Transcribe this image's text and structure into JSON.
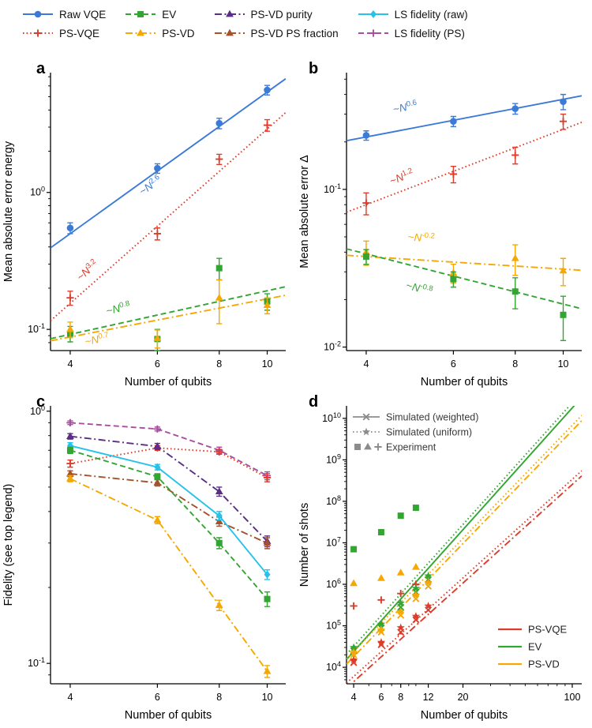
{
  "figure": {
    "legend_items": [
      {
        "label": "Raw VQE",
        "color": "#3b7ad7",
        "line": "solid",
        "marker": "circle"
      },
      {
        "label": "PS-VQE",
        "color": "#dd3c2a",
        "line": "dotted",
        "marker": "plus"
      },
      {
        "label": "EV",
        "color": "#33a532",
        "line": "dashed",
        "marker": "square"
      },
      {
        "label": "PS-VD",
        "color": "#f5a802",
        "line": "dashdot",
        "marker": "triangle"
      },
      {
        "label": "PS-VD purity",
        "color": "#5c2d87",
        "line": "dashdot",
        "marker": "triangle"
      },
      {
        "label": "PS-VD PS fraction",
        "color": "#a5522b",
        "line": "dashdot",
        "marker": "triangle"
      },
      {
        "label": "LS fidelity (raw)",
        "color": "#25c2ea",
        "line": "solid",
        "marker": "diamond"
      },
      {
        "label": "LS fidelity (PS)",
        "color": "#a84d9f",
        "line": "dashed",
        "marker": "plus"
      }
    ]
  },
  "chart_data": [
    {
      "id": "a",
      "panel_label": "a",
      "type": "line",
      "xlabel": "Number of qubits",
      "ylabel": "Mean absolute error energy",
      "xscale": "log",
      "yscale": "log",
      "xlim": [
        3.65,
        10.9
      ],
      "ylim": [
        0.07,
        7.5
      ],
      "xticks": [
        4,
        6,
        8,
        10
      ],
      "series": [
        {
          "name": "Raw VQE",
          "color": "#3b7ad7",
          "line": "solid",
          "marker": "circle",
          "x": [
            4,
            6,
            8,
            10
          ],
          "y": [
            0.55,
            1.5,
            3.2,
            5.6
          ],
          "yerr": [
            0.05,
            0.12,
            0.28,
            0.45
          ],
          "fit": {
            "exp": 2.6,
            "y_at_4": 0.5
          }
        },
        {
          "name": "PS-VQE",
          "color": "#dd3c2a",
          "line": "dotted",
          "marker": "plus",
          "x": [
            4,
            6,
            8,
            10
          ],
          "y": [
            0.17,
            0.5,
            1.75,
            3.1
          ],
          "yerr": [
            0.02,
            0.05,
            0.15,
            0.3
          ],
          "fit": {
            "exp": 3.2,
            "y_at_4": 0.155
          }
        },
        {
          "name": "EV",
          "color": "#33a532",
          "line": "dashed",
          "marker": "square",
          "x": [
            4,
            6,
            8,
            10
          ],
          "y": [
            0.093,
            0.085,
            0.28,
            0.16
          ],
          "yerr": [
            0.012,
            0.015,
            0.05,
            0.022
          ],
          "fit": {
            "exp": 0.8,
            "y_at_4": 0.092
          }
        },
        {
          "name": "PS-VD",
          "color": "#f5a802",
          "line": "dashdot",
          "marker": "triangle",
          "x": [
            4,
            6,
            8,
            10
          ],
          "y": [
            0.1,
            0.086,
            0.17,
            0.15
          ],
          "yerr": [
            0.013,
            0.013,
            0.06,
            0.02
          ],
          "fit": {
            "exp": 0.7,
            "y_at_4": 0.088
          }
        }
      ],
      "annotations": [
        {
          "text": "~N",
          "exp": "2.6",
          "color": "#3b7ad7",
          "x": 5.6,
          "y": 0.95,
          "rotate": -36
        },
        {
          "text": "~N",
          "exp": "3.2",
          "color": "#dd3c2a",
          "x": 4.2,
          "y": 0.225,
          "rotate": -42
        },
        {
          "text": "~N",
          "exp": "0.8",
          "color": "#33a532",
          "x": 4.75,
          "y": 0.128,
          "rotate": -13
        },
        {
          "text": "~N",
          "exp": "0.7",
          "color": "#f5a802",
          "x": 4.3,
          "y": 0.0765,
          "rotate": -11
        }
      ]
    },
    {
      "id": "b",
      "panel_label": "b",
      "type": "line",
      "xlabel": "Number of qubits",
      "ylabel": "Mean absolute error Δ",
      "xscale": "log",
      "yscale": "log",
      "xlim": [
        3.65,
        10.9
      ],
      "ylim": [
        0.0095,
        0.55
      ],
      "xticks": [
        4,
        6,
        8,
        10
      ],
      "series": [
        {
          "name": "Raw VQE",
          "color": "#3b7ad7",
          "line": "solid",
          "marker": "circle",
          "x": [
            4,
            6,
            8,
            10
          ],
          "y": [
            0.22,
            0.27,
            0.325,
            0.36
          ],
          "yerr": [
            0.015,
            0.02,
            0.025,
            0.04
          ],
          "fit": {
            "exp": 0.6,
            "y_at_4": 0.215
          }
        },
        {
          "name": "PS-VQE",
          "color": "#dd3c2a",
          "line": "dotted",
          "marker": "plus",
          "x": [
            4,
            6,
            8,
            10
          ],
          "y": [
            0.082,
            0.125,
            0.165,
            0.27
          ],
          "yerr": [
            0.013,
            0.015,
            0.02,
            0.03
          ],
          "fit": {
            "exp": 1.2,
            "y_at_4": 0.08
          }
        },
        {
          "name": "PS-VD",
          "color": "#f5a802",
          "line": "dashdot",
          "marker": "triangle",
          "x": [
            4,
            6,
            8,
            10
          ],
          "y": [
            0.04,
            0.0295,
            0.0365,
            0.0305
          ],
          "yerr": [
            0.007,
            0.004,
            0.008,
            0.006
          ],
          "fit": {
            "exp": -0.2,
            "y_at_4": 0.0375
          }
        },
        {
          "name": "EV",
          "color": "#33a532",
          "line": "dashed",
          "marker": "square",
          "x": [
            4,
            6,
            8,
            10
          ],
          "y": [
            0.0375,
            0.027,
            0.0225,
            0.016
          ],
          "yerr": [
            0.004,
            0.003,
            0.005,
            0.005
          ],
          "fit": {
            "exp": -0.8,
            "y_at_4": 0.039
          }
        }
      ],
      "annotations": [
        {
          "text": "~N",
          "exp": "0.6",
          "color": "#3b7ad7",
          "x": 4.55,
          "y": 0.305,
          "rotate": -11
        },
        {
          "text": "~N",
          "exp": "1.2",
          "color": "#dd3c2a",
          "x": 4.5,
          "y": 0.107,
          "rotate": -21
        },
        {
          "text": "~N",
          "exp": "-0.2",
          "color": "#f5a802",
          "x": 4.85,
          "y": 0.0475,
          "rotate": 4
        },
        {
          "text": "~N",
          "exp": "-0.8",
          "color": "#33a532",
          "x": 4.8,
          "y": 0.0235,
          "rotate": 14
        }
      ]
    },
    {
      "id": "c",
      "panel_label": "c",
      "type": "line",
      "xlabel": "Number of qubits",
      "ylabel": "Fidelity (see top legend)",
      "xscale": "log",
      "yscale": "log",
      "xlim": [
        3.65,
        10.9
      ],
      "ylim": [
        0.083,
        1.05
      ],
      "xticks": [
        4,
        6,
        8,
        10
      ],
      "series": [
        {
          "name": "LS fidelity (PS)",
          "color": "#a84d9f",
          "line": "dashed",
          "marker": "plus",
          "x": [
            4,
            6,
            8,
            10
          ],
          "y": [
            0.9,
            0.85,
            0.7,
            0.555
          ],
          "yerr": [
            0.015,
            0.015,
            0.02,
            0.02
          ]
        },
        {
          "name": "PS-VQE",
          "color": "#dd3c2a",
          "line": "dotted",
          "marker": "plus",
          "x": [
            4,
            6,
            8,
            10
          ],
          "y": [
            0.62,
            0.715,
            0.69,
            0.545
          ],
          "yerr": [
            0.02,
            0.015,
            0.015,
            0.02
          ]
        },
        {
          "name": "PS-VD purity",
          "color": "#5c2d87",
          "line": "dashdot",
          "marker": "triangle",
          "x": [
            4,
            6,
            8,
            10
          ],
          "y": [
            0.795,
            0.725,
            0.48,
            0.305
          ],
          "yerr": [
            0.02,
            0.02,
            0.02,
            0.015
          ]
        },
        {
          "name": "PS-VD PS fraction",
          "color": "#a5522b",
          "line": "dashdot",
          "marker": "triangle",
          "x": [
            4,
            6,
            8,
            10
          ],
          "y": [
            0.565,
            0.52,
            0.365,
            0.3
          ],
          "yerr": [
            0.015,
            0.015,
            0.015,
            0.015
          ]
        },
        {
          "name": "LS fidelity (raw)",
          "color": "#25c2ea",
          "line": "solid",
          "marker": "diamond",
          "x": [
            4,
            6,
            8,
            10
          ],
          "y": [
            0.73,
            0.6,
            0.385,
            0.225
          ],
          "yerr": [
            0.02,
            0.015,
            0.015,
            0.01
          ]
        },
        {
          "name": "EV",
          "color": "#33a532",
          "line": "dashed",
          "marker": "square",
          "x": [
            4,
            6,
            8,
            10
          ],
          "y": [
            0.7,
            0.55,
            0.3,
            0.18
          ],
          "yerr": [
            0.02,
            0.015,
            0.015,
            0.012
          ]
        },
        {
          "name": "PS-VD",
          "color": "#f5a802",
          "line": "dashdot",
          "marker": "triangle",
          "x": [
            4,
            6,
            8,
            10
          ],
          "y": [
            0.54,
            0.37,
            0.17,
            0.093
          ],
          "yerr": [
            0.015,
            0.012,
            0.008,
            0.005
          ]
        }
      ],
      "annotations": []
    },
    {
      "id": "d",
      "panel_label": "d",
      "type": "scatter",
      "xlabel": "Number of qubits",
      "ylabel": "Number of shots",
      "xscale": "log",
      "yscale": "log",
      "xlim": [
        3.6,
        115
      ],
      "ylim": [
        4000,
        20000000000.0
      ],
      "xticks": [
        4,
        6,
        8,
        12,
        20,
        100
      ],
      "xminor": true,
      "series": [
        {
          "name": "PS-VQE fit (weighted)",
          "color": "#dd3c2a",
          "line": "dashdot",
          "fit": {
            "exp": 3.4,
            "y_at_4": 4500
          }
        },
        {
          "name": "PS-VQE fit (uniform)",
          "color": "#dd3c2a",
          "line": "dotted",
          "fit": {
            "exp": 3.4,
            "y_at_4": 6000
          }
        },
        {
          "name": "EV fit (weighted)",
          "color": "#33a532",
          "line": "solid",
          "fit": {
            "exp": 4.2,
            "y_at_4": 24000
          }
        },
        {
          "name": "EV fit (uniform)",
          "color": "#33a532",
          "line": "dotted",
          "fit": {
            "exp": 4.2,
            "y_at_4": 32000
          }
        },
        {
          "name": "PS-VD fit (weighted)",
          "color": "#f5a802",
          "line": "dashdot",
          "fit": {
            "exp": 3.9,
            "y_at_4": 18000
          }
        },
        {
          "name": "PS-VD fit (uniform)",
          "color": "#f5a802",
          "line": "dotted",
          "fit": {
            "exp": 3.9,
            "y_at_4": 24000
          }
        },
        {
          "name": "Experiment EV",
          "color": "#33a532",
          "marker": "square",
          "x": [
            4,
            6,
            8,
            10
          ],
          "y": [
            7000000.0,
            18000000.0,
            45000000.0,
            70000000.0
          ]
        },
        {
          "name": "Experiment PS-VD",
          "color": "#f5a802",
          "marker": "triangle",
          "x": [
            4,
            6,
            8,
            10
          ],
          "y": [
            1050000.0,
            1400000.0,
            1900000.0,
            2600000.0
          ]
        },
        {
          "name": "Experiment PS-VQE",
          "color": "#dd3c2a",
          "marker": "plus",
          "x": [
            4,
            6,
            8,
            10
          ],
          "y": [
            300000.0,
            420000.0,
            600000.0,
            1000000.0
          ]
        },
        {
          "name": "Simulated weighted EV",
          "color": "#33a532",
          "marker": "x",
          "x": [
            4,
            6,
            8,
            10,
            12
          ],
          "y": [
            25000.0,
            90000.0,
            280000.0,
            650000.0,
            1300000.0
          ]
        },
        {
          "name": "Simulated weighted PS-VD",
          "color": "#f5a802",
          "marker": "x",
          "x": [
            4,
            6,
            8,
            10,
            12
          ],
          "y": [
            20000.0,
            70000.0,
            180000.0,
            450000.0,
            900000.0
          ]
        },
        {
          "name": "Simulated weighted PS-VQE",
          "color": "#dd3c2a",
          "marker": "x",
          "x": [
            4,
            6,
            8,
            10,
            12
          ],
          "y": [
            13000.0,
            35000.0,
            70000.0,
            140000.0,
            240000.0
          ]
        },
        {
          "name": "Simulated uniform EV",
          "color": "#33a532",
          "marker": "star",
          "x": [
            4,
            6,
            8,
            10,
            12
          ],
          "y": [
            30000.0,
            110000.0,
            350000.0,
            800000.0,
            1600000.0
          ]
        },
        {
          "name": "Simulated uniform PS-VD",
          "color": "#f5a802",
          "marker": "star",
          "x": [
            4,
            6,
            8,
            10,
            12
          ],
          "y": [
            23000.0,
            80000.0,
            220000.0,
            550000.0,
            1100000.0
          ]
        },
        {
          "name": "Simulated uniform PS-VQE",
          "color": "#dd3c2a",
          "marker": "star",
          "x": [
            4,
            6,
            8,
            10,
            12
          ],
          "y": [
            15000.0,
            40000.0,
            90000.0,
            170000.0,
            300000.0
          ]
        }
      ],
      "annotations": [],
      "legend_top_color": "#8c8c8c",
      "legend_top": [
        {
          "label": "Simulated (weighted)",
          "marker": "x",
          "line": "solid"
        },
        {
          "label": "Simulated (uniform)",
          "marker": "star",
          "line": "dotted"
        },
        {
          "label": "Experiment",
          "markers": [
            "square",
            "triangle",
            "plus"
          ]
        }
      ],
      "legend_bottom": [
        {
          "label": "PS-VQE",
          "color": "#dd3c2a"
        },
        {
          "label": "EV",
          "color": "#33a532"
        },
        {
          "label": "PS-VD",
          "color": "#f5a802"
        }
      ]
    }
  ]
}
